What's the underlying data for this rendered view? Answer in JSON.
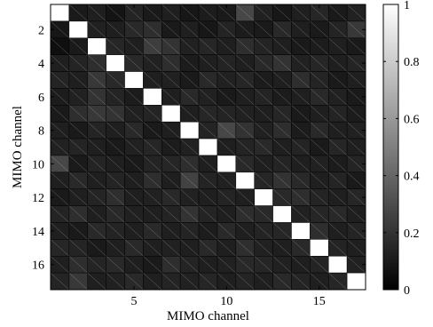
{
  "chart_data": {
    "type": "heatmap",
    "xlabel": "MIMO channel",
    "ylabel": "MIMO channel",
    "x_ticks": [
      "5",
      "10",
      "15"
    ],
    "y_ticks": [
      "2",
      "4",
      "6",
      "8",
      "10",
      "12",
      "14",
      "16"
    ],
    "colorbar_ticks": [
      "0",
      "0.2",
      "0.4",
      "0.6",
      "0.8",
      "1"
    ],
    "colormap": "gray",
    "color_range": [
      0,
      1
    ],
    "rows": 17,
    "cols": 17,
    "matrix": [
      [
        1.0,
        0.1,
        0.12,
        0.08,
        0.14,
        0.1,
        0.12,
        0.09,
        0.11,
        0.1,
        0.28,
        0.13,
        0.09,
        0.12,
        0.15,
        0.1,
        0.13
      ],
      [
        0.09,
        1.0,
        0.13,
        0.12,
        0.16,
        0.18,
        0.1,
        0.12,
        0.09,
        0.14,
        0.11,
        0.1,
        0.16,
        0.12,
        0.1,
        0.14,
        0.22
      ],
      [
        0.06,
        0.1,
        1.0,
        0.15,
        0.12,
        0.24,
        0.2,
        0.13,
        0.15,
        0.12,
        0.18,
        0.14,
        0.12,
        0.1,
        0.11,
        0.12,
        0.1
      ],
      [
        0.12,
        0.14,
        0.18,
        1.0,
        0.16,
        0.13,
        0.18,
        0.11,
        0.12,
        0.14,
        0.12,
        0.16,
        0.2,
        0.13,
        0.15,
        0.12,
        0.14
      ],
      [
        0.14,
        0.12,
        0.22,
        0.16,
        1.0,
        0.12,
        0.13,
        0.1,
        0.16,
        0.13,
        0.15,
        0.11,
        0.12,
        0.18,
        0.14,
        0.1,
        0.12
      ],
      [
        0.11,
        0.13,
        0.2,
        0.14,
        0.11,
        1.0,
        0.12,
        0.16,
        0.13,
        0.1,
        0.12,
        0.14,
        0.11,
        0.12,
        0.16,
        0.13,
        0.1
      ],
      [
        0.1,
        0.18,
        0.22,
        0.2,
        0.13,
        0.14,
        1.0,
        0.12,
        0.15,
        0.14,
        0.13,
        0.12,
        0.15,
        0.1,
        0.12,
        0.14,
        0.11
      ],
      [
        0.12,
        0.1,
        0.14,
        0.12,
        0.16,
        0.1,
        0.12,
        1.0,
        0.14,
        0.28,
        0.2,
        0.13,
        0.18,
        0.11,
        0.16,
        0.12,
        0.13
      ],
      [
        0.13,
        0.14,
        0.12,
        0.1,
        0.13,
        0.15,
        0.11,
        0.13,
        1.0,
        0.12,
        0.14,
        0.16,
        0.12,
        0.14,
        0.1,
        0.15,
        0.12
      ],
      [
        0.28,
        0.1,
        0.14,
        0.12,
        0.1,
        0.14,
        0.15,
        0.18,
        0.12,
        1.0,
        0.16,
        0.12,
        0.14,
        0.12,
        0.13,
        0.11,
        0.14
      ],
      [
        0.12,
        0.16,
        0.12,
        0.14,
        0.12,
        0.18,
        0.12,
        0.26,
        0.14,
        0.13,
        1.0,
        0.15,
        0.2,
        0.16,
        0.12,
        0.14,
        0.1
      ],
      [
        0.1,
        0.12,
        0.14,
        0.18,
        0.12,
        0.13,
        0.16,
        0.13,
        0.12,
        0.14,
        0.12,
        1.0,
        0.16,
        0.18,
        0.14,
        0.12,
        0.15
      ],
      [
        0.14,
        0.18,
        0.12,
        0.16,
        0.13,
        0.12,
        0.14,
        0.2,
        0.14,
        0.12,
        0.18,
        0.16,
        1.0,
        0.13,
        0.15,
        0.16,
        0.12
      ],
      [
        0.12,
        0.1,
        0.16,
        0.14,
        0.12,
        0.16,
        0.12,
        0.14,
        0.11,
        0.16,
        0.12,
        0.14,
        0.15,
        1.0,
        0.18,
        0.12,
        0.14
      ],
      [
        0.15,
        0.14,
        0.1,
        0.12,
        0.16,
        0.12,
        0.13,
        0.12,
        0.16,
        0.12,
        0.18,
        0.13,
        0.12,
        0.16,
        1.0,
        0.14,
        0.12
      ],
      [
        0.12,
        0.18,
        0.14,
        0.16,
        0.12,
        0.1,
        0.18,
        0.14,
        0.12,
        0.13,
        0.16,
        0.15,
        0.13,
        0.12,
        0.14,
        1.0,
        0.13
      ],
      [
        0.14,
        0.22,
        0.12,
        0.13,
        0.16,
        0.12,
        0.14,
        0.13,
        0.15,
        0.12,
        0.14,
        0.12,
        0.16,
        0.14,
        0.12,
        0.15,
        1.0
      ]
    ]
  }
}
